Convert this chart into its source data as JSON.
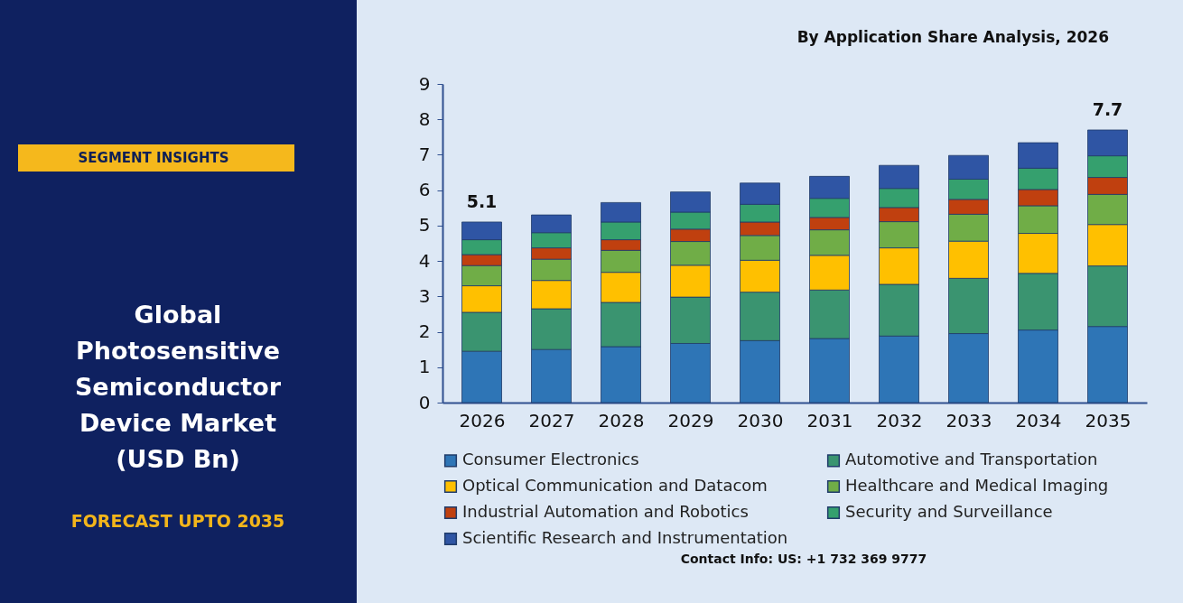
{
  "chart_data": {
    "type": "bar",
    "stacked": true,
    "title": "By Application Share Analysis, 2026",
    "categories": [
      "2026",
      "2027",
      "2028",
      "2029",
      "2030",
      "2031",
      "2032",
      "2033",
      "2034",
      "2035"
    ],
    "series": [
      {
        "name": "Consumer Electronics",
        "color": "#2e75b6",
        "values": [
          1.45,
          1.5,
          1.58,
          1.67,
          1.75,
          1.81,
          1.88,
          1.95,
          2.05,
          2.15
        ]
      },
      {
        "name": "Automotive and Transportation",
        "color": "#3a9470",
        "values": [
          1.1,
          1.15,
          1.25,
          1.31,
          1.37,
          1.37,
          1.46,
          1.56,
          1.6,
          1.71
        ]
      },
      {
        "name": "Optical Communication and Datacom",
        "color": "#ffc000",
        "values": [
          0.75,
          0.8,
          0.85,
          0.9,
          0.9,
          0.98,
          1.03,
          1.05,
          1.13,
          1.17
        ]
      },
      {
        "name": "Healthcare and Medical Imaging",
        "color": "#70ad47",
        "values": [
          0.57,
          0.6,
          0.62,
          0.67,
          0.7,
          0.72,
          0.74,
          0.76,
          0.78,
          0.85
        ]
      },
      {
        "name": "Industrial Automation and Robotics",
        "color": "#c0400f",
        "values": [
          0.31,
          0.32,
          0.3,
          0.35,
          0.38,
          0.35,
          0.4,
          0.42,
          0.46,
          0.48
        ]
      },
      {
        "name": "Security and Surveillance",
        "color": "#35a06e",
        "values": [
          0.42,
          0.43,
          0.5,
          0.48,
          0.5,
          0.54,
          0.54,
          0.57,
          0.6,
          0.61
        ]
      },
      {
        "name": "Scientific Research and Instrumentation",
        "color": "#2f55a4",
        "values": [
          0.5,
          0.5,
          0.55,
          0.57,
          0.6,
          0.62,
          0.65,
          0.67,
          0.72,
          0.73
        ]
      }
    ],
    "totals": [
      "5.1",
      null,
      null,
      null,
      null,
      null,
      null,
      null,
      null,
      "7.7"
    ],
    "ylim": [
      0,
      9
    ],
    "yticks": [
      0,
      1,
      2,
      3,
      4,
      5,
      6,
      7,
      8,
      9
    ],
    "legend": "bottom",
    "grid": false,
    "annotations": [
      "SEGMENT INSIGHTS",
      "Global\nPhotosensitive\nSemiconductor\nDevice Market\n(USD Bn)",
      "FORECAST UPTO 2035",
      "Contact Info: US: +1 732 369 9777"
    ]
  }
}
